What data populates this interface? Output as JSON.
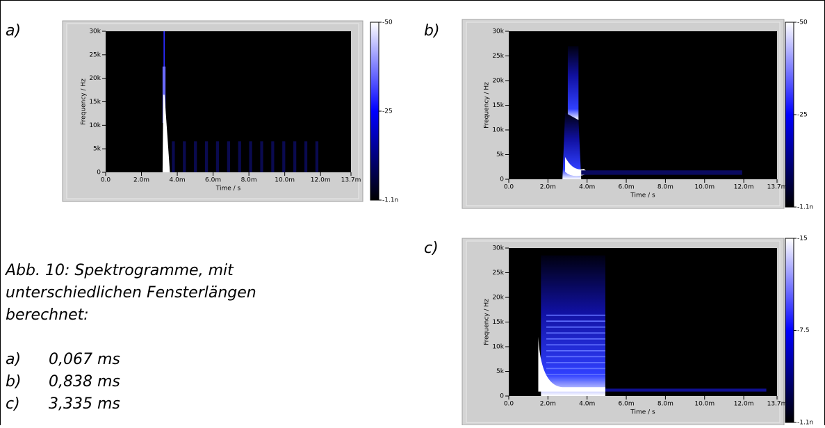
{
  "chart_data": [
    {
      "type": "spectrogram",
      "label": "a)",
      "x_label": "Time / s",
      "y_label": "Frequency / Hz",
      "xlim": [
        0,
        0.0137
      ],
      "xticks": [
        {
          "value": 0,
          "label": "0.0"
        },
        {
          "value": 0.002,
          "label": "2.0m"
        },
        {
          "value": 0.004,
          "label": "4.0m"
        },
        {
          "value": 0.006,
          "label": "6.0m"
        },
        {
          "value": 0.008,
          "label": "8.0m"
        },
        {
          "value": 0.01,
          "label": "10.0m"
        },
        {
          "value": 0.012,
          "label": "12.0m"
        },
        {
          "value": 0.0137,
          "label": "13.7m"
        }
      ],
      "ylim": [
        0,
        30000
      ],
      "yticks": [
        0,
        {
          "value": 5000,
          "label": "5k"
        },
        {
          "value": 10000,
          "label": "10k"
        },
        {
          "value": 15000,
          "label": "15k"
        },
        {
          "value": 20000,
          "label": "20k"
        },
        {
          "value": 25000,
          "label": "25k"
        },
        {
          "value": 30000,
          "label": "30k"
        }
      ],
      "colorbar_lim": [
        -1.1e-09,
        -50
      ],
      "colorbar_ticks": [
        -50,
        -25,
        {
          "value": -1.1e-09,
          "label": "-1.1n"
        }
      ]
    },
    {
      "type": "spectrogram",
      "label": "b)",
      "x_label": "Time / s",
      "y_label": "Frequency / Hz",
      "xlim": [
        0,
        0.0137
      ],
      "xticks": [
        {
          "value": 0,
          "label": "0.0"
        },
        {
          "value": 0.002,
          "label": "2.0m"
        },
        {
          "value": 0.004,
          "label": "4.0m"
        },
        {
          "value": 0.006,
          "label": "6.0m"
        },
        {
          "value": 0.008,
          "label": "8.0m"
        },
        {
          "value": 0.01,
          "label": "10.0m"
        },
        {
          "value": 0.012,
          "label": "12.0m"
        },
        {
          "value": 0.0137,
          "label": "13.7m"
        }
      ],
      "ylim": [
        0,
        30000
      ],
      "yticks": [
        0,
        {
          "value": 5000,
          "label": "5k"
        },
        {
          "value": 10000,
          "label": "10k"
        },
        {
          "value": 15000,
          "label": "15k"
        },
        {
          "value": 20000,
          "label": "20k"
        },
        {
          "value": 25000,
          "label": "25k"
        },
        {
          "value": 30000,
          "label": "30k"
        }
      ],
      "colorbar_lim": [
        -1.1e-09,
        -50
      ],
      "colorbar_ticks": [
        -50,
        -25,
        {
          "value": -1.1e-09,
          "label": "-1.1n"
        }
      ]
    },
    {
      "type": "spectrogram",
      "label": "c)",
      "x_label": "Time / s",
      "y_label": "Frequency / Hz",
      "xlim": [
        0,
        0.0137
      ],
      "xticks": [
        {
          "value": 0,
          "label": "0.0"
        },
        {
          "value": 0.002,
          "label": "2.0m"
        },
        {
          "value": 0.004,
          "label": "4.0m"
        },
        {
          "value": 0.006,
          "label": "6.0m"
        },
        {
          "value": 0.008,
          "label": "8.0m"
        },
        {
          "value": 0.01,
          "label": "10.0m"
        },
        {
          "value": 0.012,
          "label": "12.0m"
        },
        {
          "value": 0.0137,
          "label": "13.7m"
        }
      ],
      "ylim": [
        0,
        30000
      ],
      "yticks": [
        0,
        {
          "value": 5000,
          "label": "5k"
        },
        {
          "value": 10000,
          "label": "10k"
        },
        {
          "value": 15000,
          "label": "15k"
        },
        {
          "value": 20000,
          "label": "20k"
        },
        {
          "value": 25000,
          "label": "25k"
        },
        {
          "value": 30000,
          "label": "30k"
        }
      ],
      "colorbar_lim": [
        -1.1e-09,
        -15
      ],
      "colorbar_ticks": [
        -15,
        -7.5,
        {
          "value": -1.1e-09,
          "label": "-1.1n"
        }
      ]
    }
  ],
  "caption": {
    "lines": [
      "Abb. 10: Spektrogramme, mit",
      "unterschiedlichen Fensterlängen",
      "berechnet:"
    ],
    "items": [
      {
        "marker": "a)",
        "text": "0,067 ms"
      },
      {
        "marker": "b)",
        "text": "0,838 ms"
      },
      {
        "marker": "c)",
        "text": "3,335 ms"
      }
    ]
  }
}
